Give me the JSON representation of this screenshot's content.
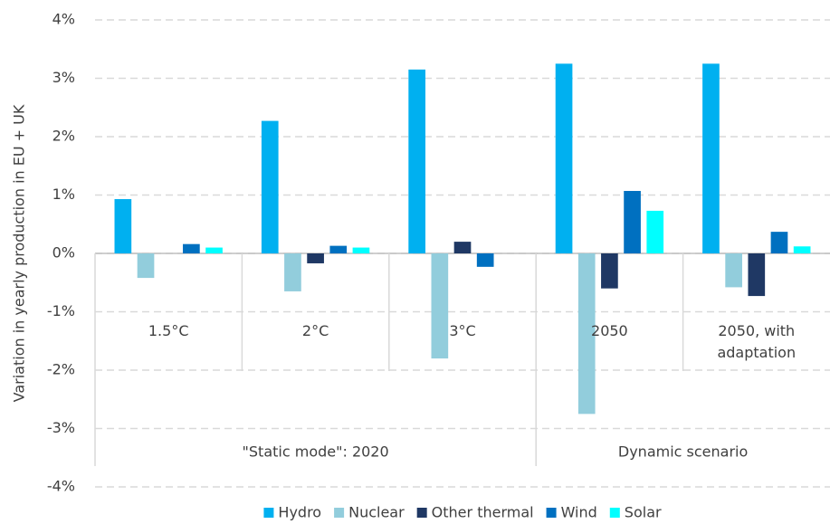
{
  "chart_data": {
    "type": "bar",
    "y_axis_label": "Variation in yearly production in EU + UK",
    "groups": [
      {
        "label": "\"Static mode\": 2020",
        "categories": [
          "1.5°C",
          "2°C",
          "3°C"
        ]
      },
      {
        "label": "Dynamic scenario",
        "categories": [
          "2050",
          "2050, with adaptation"
        ]
      }
    ],
    "series": [
      {
        "name": "Hydro",
        "color": "#00b0f0",
        "values": [
          0.93,
          2.27,
          3.15,
          3.25,
          3.25
        ]
      },
      {
        "name": "Nuclear",
        "color": "#92cddc",
        "values": [
          -0.42,
          -0.65,
          -1.8,
          -2.75,
          -0.58
        ]
      },
      {
        "name": "Other thermal",
        "color": "#1f3864",
        "values": [
          0,
          -0.17,
          0.2,
          -0.6,
          -0.73
        ]
      },
      {
        "name": "Wind",
        "color": "#0070c0",
        "values": [
          0.16,
          0.13,
          -0.23,
          1.07,
          0.37
        ]
      },
      {
        "name": "Solar",
        "color": "#00ffff",
        "values": [
          0.1,
          0.1,
          0,
          0.73,
          0.12
        ]
      }
    ],
    "ylim": [
      -4,
      4
    ],
    "yticks": [
      {
        "value": -4,
        "label": "-4%"
      },
      {
        "value": -3,
        "label": "-3%"
      },
      {
        "value": -2,
        "label": "-2%"
      },
      {
        "value": -1,
        "label": "-1%"
      },
      {
        "value": 0,
        "label": "0%"
      },
      {
        "value": 1,
        "label": "1%"
      },
      {
        "value": 2,
        "label": "2%"
      },
      {
        "value": 3,
        "label": "3%"
      },
      {
        "value": 4,
        "label": "4%"
      }
    ],
    "grid": true,
    "legend": "bottom"
  }
}
